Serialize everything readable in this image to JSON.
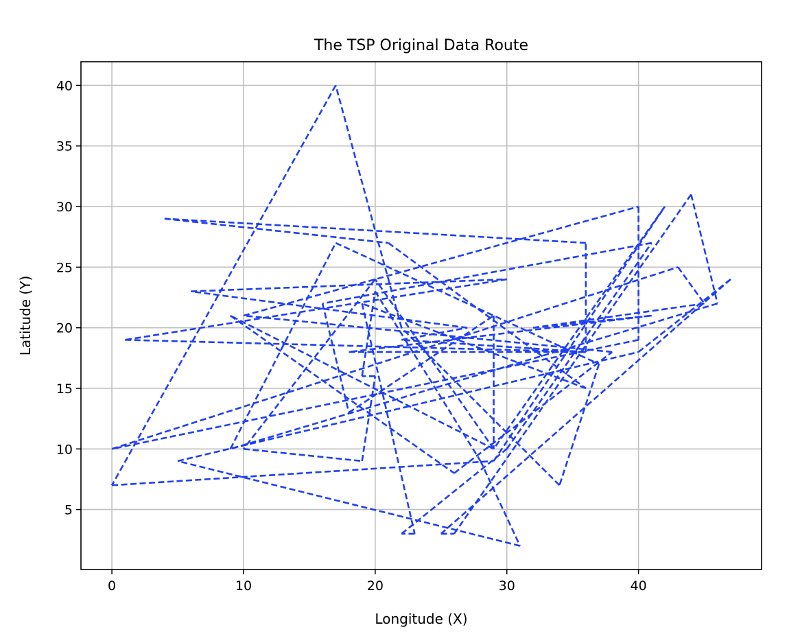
{
  "chart_data": {
    "type": "line",
    "title": "The TSP Original Data Route",
    "xlabel": "Longitude (X)",
    "ylabel": "Latitude (Y)",
    "xlim": [
      -2.35,
      49.35
    ],
    "ylim": [
      0.05,
      41.95
    ],
    "x_ticks": [
      0,
      10,
      20,
      30,
      40
    ],
    "y_ticks": [
      5,
      10,
      15,
      20,
      25,
      30,
      35,
      40
    ],
    "grid": true,
    "line_color": "#1f3ff5",
    "line_style": "dashed",
    "series": [
      {
        "points": [
          [
            4,
            29
          ],
          [
            21,
            27
          ],
          [
            36,
            15
          ],
          [
            19,
            22
          ],
          [
            23,
            3
          ],
          [
            22,
            3
          ],
          [
            30,
            10
          ],
          [
            41,
            27
          ],
          [
            16,
            22
          ],
          [
            18,
            13
          ],
          [
            29,
            21
          ],
          [
            29,
            10
          ],
          [
            20,
            24
          ],
          [
            10,
            10
          ],
          [
            19,
            9
          ],
          [
            20,
            16
          ],
          [
            19,
            16
          ],
          [
            20,
            23
          ],
          [
            28,
            9
          ],
          [
            31,
            2
          ],
          [
            5,
            9
          ],
          [
            40,
            18
          ],
          [
            47,
            24
          ],
          [
            25,
            3
          ],
          [
            26,
            3
          ],
          [
            44,
            31
          ],
          [
            46,
            22
          ],
          [
            9,
            10
          ],
          [
            17,
            27
          ],
          [
            37,
            17
          ],
          [
            34,
            7
          ],
          [
            22,
            20
          ],
          [
            17,
            40
          ],
          [
            0,
            7
          ],
          [
            29,
            9
          ],
          [
            42,
            30
          ],
          [
            29,
            10
          ],
          [
            9,
            21
          ],
          [
            26,
            8
          ],
          [
            38,
            18
          ],
          [
            10,
            21
          ],
          [
            40,
            30
          ],
          [
            40,
            19
          ],
          [
            0,
            10
          ],
          [
            43,
            25
          ],
          [
            45,
            22
          ],
          [
            32,
            20
          ],
          [
            41,
            21
          ],
          [
            18,
            18
          ],
          [
            36,
            18
          ],
          [
            22,
            19
          ],
          [
            27,
            20
          ],
          [
            6,
            23
          ],
          [
            30,
            24
          ],
          [
            1,
            19
          ],
          [
            36,
            18
          ],
          [
            36,
            27
          ],
          [
            4,
            29
          ]
        ]
      }
    ]
  }
}
